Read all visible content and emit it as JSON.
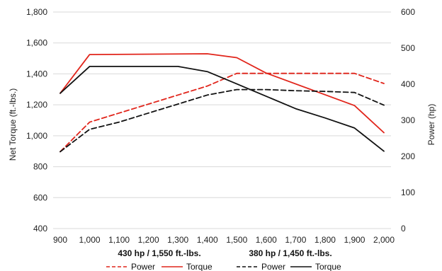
{
  "chart_data": {
    "type": "line",
    "title": "",
    "xlabel": "",
    "ylabel": "Net Torque (ft.-lbs.)",
    "y2label": "Power (hp)",
    "x": [
      900,
      1000,
      1100,
      1200,
      1300,
      1400,
      1500,
      1600,
      1700,
      1800,
      1900,
      2000
    ],
    "x_tick_labels": [
      "900",
      "1,000",
      "1,100",
      "1,200",
      "1,300",
      "1,400",
      "1,500",
      "1,600",
      "1,700",
      "1,800",
      "1,900",
      "2,000"
    ],
    "xlim": [
      900,
      2000
    ],
    "ylim": [
      400,
      1800
    ],
    "y_tick_labels": [
      "400",
      "600",
      "800",
      "1,000",
      "1,200",
      "1,400",
      "1,600",
      "1,800"
    ],
    "y2lim": [
      0,
      600
    ],
    "y2_tick_labels": [
      "0",
      "100",
      "200",
      "300",
      "400",
      "500",
      "600"
    ],
    "grid": "horizontal",
    "legend_placement": "bottom",
    "legend_groups": [
      {
        "title": "430 hp / 1,550 ft.-lbs.",
        "color": "#e1251b",
        "power_label": "Power",
        "torque_label": "Torque"
      },
      {
        "title": "380 hp / 1,450 ft.-lbs.",
        "color": "#111111",
        "power_label": "Power",
        "torque_label": "Torque"
      }
    ],
    "series": [
      {
        "group": 0,
        "kind": "Torque",
        "axis": "left",
        "dash": false,
        "color": "#e1251b",
        "points": [
          [
            900,
            1275
          ],
          [
            1000,
            1525
          ],
          [
            1400,
            1530
          ],
          [
            1500,
            1505
          ],
          [
            1600,
            1405
          ],
          [
            1900,
            1195
          ],
          [
            2000,
            1020
          ]
        ]
      },
      {
        "group": 0,
        "kind": "Power",
        "axis": "right",
        "dash": true,
        "color": "#e1251b",
        "points": [
          [
            900,
            213
          ],
          [
            1000,
            295
          ],
          [
            1100,
            320
          ],
          [
            1200,
            345
          ],
          [
            1300,
            370
          ],
          [
            1400,
            395
          ],
          [
            1500,
            430
          ],
          [
            1900,
            430
          ],
          [
            2000,
            402
          ]
        ]
      },
      {
        "group": 1,
        "kind": "Torque",
        "axis": "left",
        "dash": false,
        "color": "#111111",
        "points": [
          [
            900,
            1275
          ],
          [
            1000,
            1448
          ],
          [
            1300,
            1448
          ],
          [
            1400,
            1415
          ],
          [
            1500,
            1335
          ],
          [
            1600,
            1255
          ],
          [
            1700,
            1175
          ],
          [
            1800,
            1115
          ],
          [
            1900,
            1050
          ],
          [
            2000,
            900
          ]
        ]
      },
      {
        "group": 1,
        "kind": "Power",
        "axis": "right",
        "dash": true,
        "color": "#111111",
        "points": [
          [
            900,
            213
          ],
          [
            1000,
            275
          ],
          [
            1100,
            295
          ],
          [
            1200,
            320
          ],
          [
            1300,
            345
          ],
          [
            1400,
            370
          ],
          [
            1500,
            385
          ],
          [
            1600,
            385
          ],
          [
            1700,
            382
          ],
          [
            1800,
            380
          ],
          [
            1900,
            377
          ],
          [
            2000,
            342
          ]
        ]
      }
    ]
  }
}
